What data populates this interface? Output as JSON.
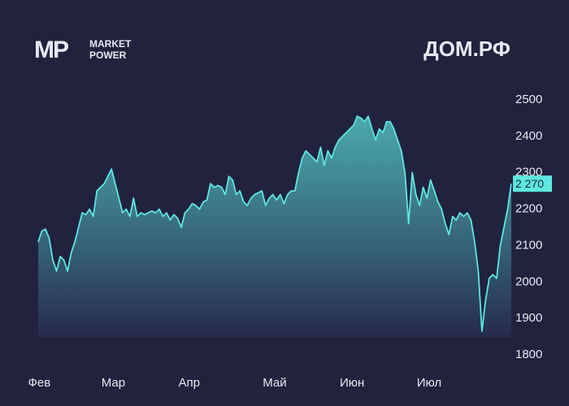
{
  "chart_data": {
    "type": "area",
    "title": "ДОМ.РФ",
    "logo": {
      "mark": "MP",
      "line1": "MARKET",
      "line2": "POWER"
    },
    "line_color": "#5ce8e0",
    "fill_color": "#4fb8b8",
    "ylim": [
      1800,
      2500
    ],
    "yticks": [
      1800,
      1900,
      2000,
      2100,
      2200,
      2300,
      2400,
      2500
    ],
    "xlim": [
      0,
      129
    ],
    "xticks": [
      {
        "value": 1,
        "label": "Фев"
      },
      {
        "value": 21,
        "label": "Мар"
      },
      {
        "value": 42,
        "label": "Апр"
      },
      {
        "value": 65,
        "label": "Май"
      },
      {
        "value": 86,
        "label": "Июн"
      },
      {
        "value": 107,
        "label": "Июл"
      }
    ],
    "values": [
      2110,
      2140,
      2145,
      2120,
      2060,
      2030,
      2070,
      2060,
      2030,
      2080,
      2110,
      2150,
      2190,
      2185,
      2200,
      2180,
      2250,
      2260,
      2270,
      2290,
      2310,
      2270,
      2230,
      2190,
      2200,
      2180,
      2230,
      2180,
      2190,
      2185,
      2190,
      2195,
      2190,
      2200,
      2180,
      2190,
      2170,
      2185,
      2175,
      2150,
      2190,
      2200,
      2215,
      2210,
      2200,
      2220,
      2225,
      2270,
      2260,
      2265,
      2260,
      2240,
      2290,
      2280,
      2240,
      2250,
      2220,
      2210,
      2230,
      2240,
      2245,
      2250,
      2210,
      2230,
      2240,
      2225,
      2240,
      2215,
      2240,
      2250,
      2250,
      2300,
      2340,
      2360,
      2350,
      2340,
      2330,
      2370,
      2320,
      2360,
      2340,
      2370,
      2390,
      2400,
      2410,
      2420,
      2430,
      2455,
      2450,
      2440,
      2455,
      2420,
      2390,
      2420,
      2410,
      2440,
      2440,
      2420,
      2390,
      2360,
      2300,
      2160,
      2300,
      2240,
      2210,
      2260,
      2230,
      2280,
      2250,
      2220,
      2200,
      2160,
      2130,
      2180,
      2170,
      2190,
      2180,
      2190,
      2170,
      2110,
      2030,
      1865,
      1950,
      2010,
      2020,
      2010,
      2100,
      2150,
      2200,
      2270
    ],
    "value_labels": [
      null,
      null,
      null,
      null,
      null,
      null,
      null,
      null,
      null,
      null,
      null,
      null,
      null,
      null,
      null,
      null,
      null,
      null,
      null,
      null,
      null,
      null,
      null,
      null,
      null,
      null,
      null,
      null,
      null,
      null,
      null,
      null,
      null,
      null,
      null,
      null,
      null,
      null,
      null,
      null,
      null,
      null,
      null,
      null,
      null,
      null,
      null,
      null,
      null,
      null,
      null,
      null,
      null,
      null,
      null,
      null,
      null,
      null,
      null,
      null,
      null,
      null,
      null,
      null,
      null,
      null,
      null,
      null,
      null,
      null,
      null,
      null,
      null,
      null,
      null,
      null,
      null,
      null,
      null,
      null,
      null,
      null,
      null,
      null,
      null,
      null,
      null,
      null,
      null,
      null,
      null,
      null,
      null,
      null,
      null,
      null,
      null,
      null,
      null,
      null,
      null,
      null,
      null,
      null,
      null,
      null,
      null,
      null,
      null,
      null,
      null,
      null,
      null,
      null,
      null,
      null,
      null,
      null,
      null,
      null,
      null,
      null,
      null,
      null,
      null,
      null,
      null,
      null,
      null,
      "2 270"
    ]
  }
}
